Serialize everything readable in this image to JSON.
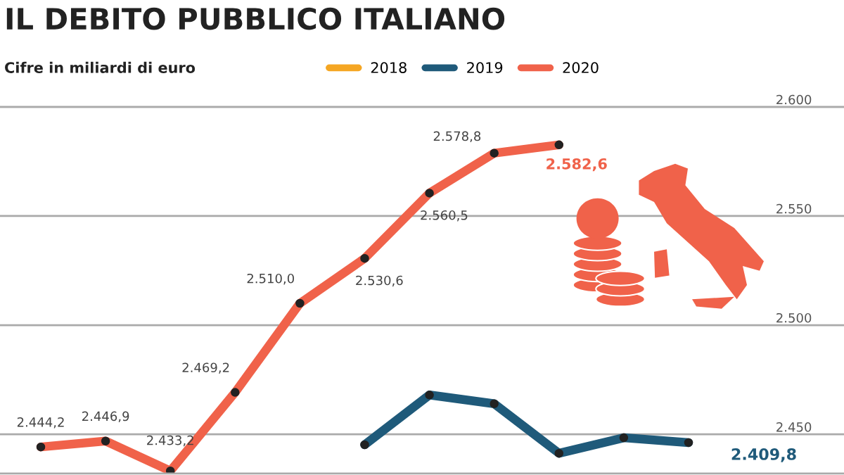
{
  "chart_data": {
    "type": "line",
    "title": "IL DEBITO PUBBLICO ITALIANO",
    "subtitle": "Cifre in miliardi di euro",
    "categories": [
      null,
      null,
      null,
      null,
      null,
      null,
      null,
      null,
      null,
      null,
      null,
      null
    ],
    "series": [
      {
        "name": "2018",
        "color": "#f5a623",
        "values": [
          null,
          null,
          null,
          null,
          null,
          null,
          null,
          null,
          null,
          null,
          null,
          null
        ]
      },
      {
        "name": "2019",
        "color": "#1f5a7a",
        "values": [
          null,
          null,
          null,
          null,
          null,
          2445.2,
          2468,
          2464,
          2441.3,
          2448.4,
          2446.2,
          null
        ]
      },
      {
        "name": "2020",
        "color": "#f0624a",
        "values": [
          2444.2,
          2446.9,
          2433.2,
          2469.2,
          2510.0,
          2530.6,
          2560.5,
          2578.8,
          2582.6,
          null,
          null,
          null
        ],
        "value_labels": [
          "2.444,2",
          "2.446,9",
          "2.433,2",
          "2.469,2",
          "2.510,0",
          "2.530,6",
          "2.560,5",
          "2.578,8",
          "2.582,6",
          null,
          null,
          null
        ]
      }
    ],
    "annotations": [
      "2.409,8"
    ],
    "ylim": [
      2432,
      2600
    ],
    "yticks": [
      {
        "value": 2450,
        "label": "2.450"
      },
      {
        "value": 2500,
        "label": "2.500"
      },
      {
        "value": 2550,
        "label": "2.550"
      },
      {
        "value": 2600,
        "label": "2.600"
      }
    ],
    "grid": "y",
    "legend": "top",
    "marker": "circle",
    "line_style": "solid"
  }
}
